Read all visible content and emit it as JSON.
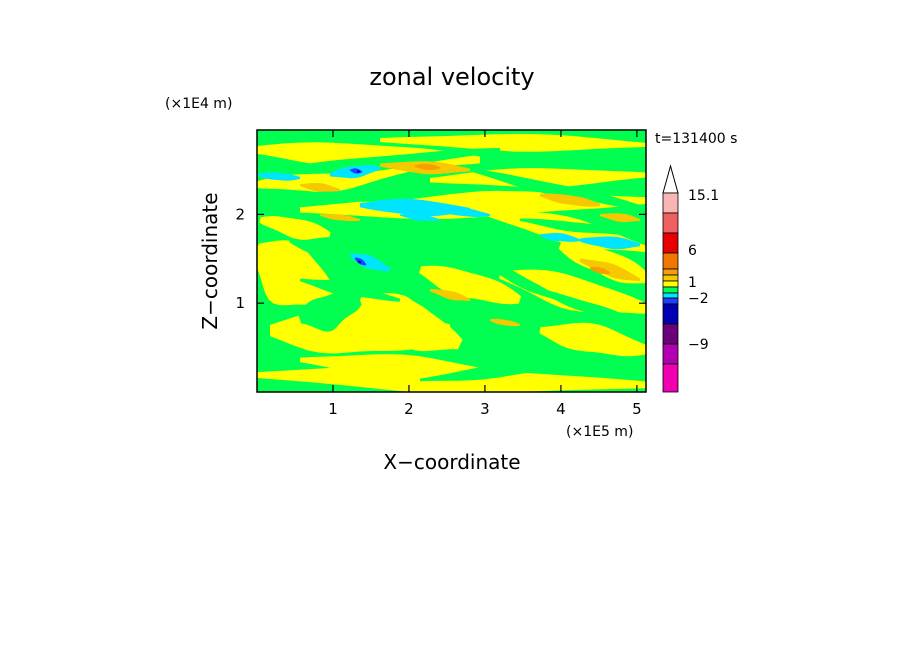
{
  "chart_data": {
    "type": "heatmap",
    "title": "zonal velocity",
    "xlabel": "X−coordinate",
    "ylabel": "Z−coordinate",
    "x_scale_label": "(×1E5 m)",
    "y_scale_label": "(×1E4 m)",
    "time_label": "t=131400 s",
    "xlim": [
      0,
      5.12
    ],
    "ylim": [
      0,
      2.95
    ],
    "x_ticks": [
      1,
      2,
      3,
      4,
      5
    ],
    "y_ticks": [
      1,
      2
    ],
    "x_tick_labels": [
      "1",
      "2",
      "3",
      "4",
      "5"
    ],
    "y_tick_labels": [
      "1",
      "2"
    ],
    "colorbar": {
      "labels": [
        "15.1",
        "6",
        "1",
        "−2",
        "−9"
      ],
      "label_values": [
        15.1,
        6,
        1,
        -2,
        -9
      ],
      "colors": [
        "#ffffff",
        "#f9b4b4",
        "#f06060",
        "#e60000",
        "#f07800",
        "#f5a000",
        "#f5c800",
        "#ffff00",
        "#00ff50",
        "#00e5ff",
        "#2040ff",
        "#0000b0",
        "#6a007a",
        "#b000b0",
        "#f000b0"
      ]
    },
    "colors": {
      "background_band": "#00ff50",
      "positive_band": "#ffff00",
      "positive_strong": "#f5c800",
      "positive_max": "#f5a000",
      "negative_band": "#00e5ff",
      "negative_strong": "#2040ff",
      "negative_max": "#0000b0"
    }
  }
}
